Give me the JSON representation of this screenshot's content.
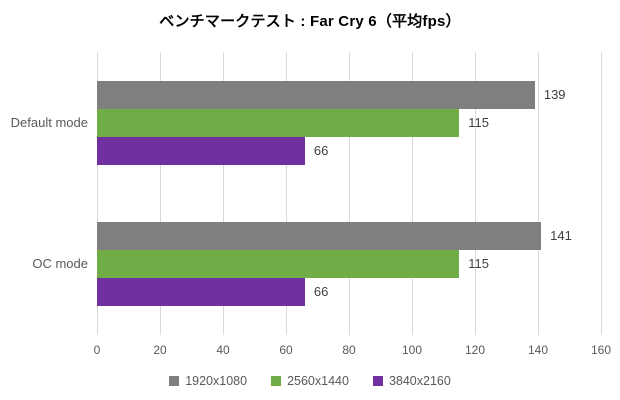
{
  "chart_data": {
    "type": "bar",
    "orientation": "horizontal",
    "title": "ベンチマークテスト : Far Cry 6（平均fps）",
    "categories": [
      "Default mode",
      "OC mode"
    ],
    "series": [
      {
        "name": "1920x1080",
        "color": "#7f7f7f",
        "values": [
          139,
          141
        ]
      },
      {
        "name": "2560x1440",
        "color": "#70ad47",
        "values": [
          115,
          115
        ]
      },
      {
        "name": "3840x2160",
        "color": "#7030a0",
        "values": [
          66,
          66
        ]
      }
    ],
    "xlabel": "",
    "ylabel": "",
    "xlim": [
      0,
      160
    ],
    "xticks": [
      0,
      20,
      40,
      60,
      80,
      100,
      120,
      140,
      160
    ],
    "grid": true,
    "legend_position": "bottom",
    "value_labels_shown": true
  },
  "colors": {
    "background": "#ffffff",
    "gridline": "#d9d9d9",
    "axis_text": "#595959",
    "value_text": "#404040",
    "title_text": "#000000"
  }
}
